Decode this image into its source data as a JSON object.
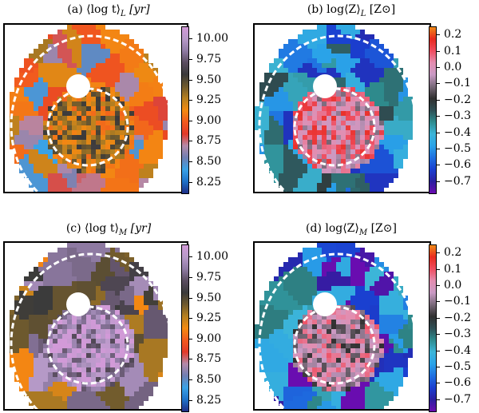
{
  "colors": {
    "age_scale": [
      "#1d2e86",
      "#1f72c8",
      "#3aa2e6",
      "#6f7fb3",
      "#b58aa8",
      "#e23a2a",
      "#f25a1e",
      "#f38a12",
      "#b78020",
      "#6f5a2e",
      "#3a3a3a",
      "#5a4d60",
      "#8f7ba4",
      "#b79ac8",
      "#d29ad8"
    ],
    "met_scale": [
      "#6a0db0",
      "#2b1fa0",
      "#1a3fd0",
      "#1f6fe0",
      "#2aa3e8",
      "#3cb5d8",
      "#2e8c8e",
      "#2f4f55",
      "#303030",
      "#7a6a7a",
      "#c99ac4",
      "#e38db0",
      "#ef4d5f",
      "#e82a1e",
      "#f08a18"
    ],
    "ring": "#ffffff",
    "hole": "#ffffff"
  },
  "chart_data": [
    {
      "type": "heatmap",
      "id": "a",
      "title": "(a) ⟨log t⟩L [yr]",
      "title_main": "(a) ⟨log t⟩",
      "title_sub": "L",
      "title_unit": "[yr]",
      "colorbar": {
        "scale": "age",
        "range": [
          8.1,
          10.15
        ],
        "ticks": [
          10.0,
          9.75,
          9.5,
          9.25,
          9.0,
          8.75,
          8.5,
          8.25
        ]
      },
      "core_value": 9.3,
      "outer_value": 8.85,
      "field": "age_light"
    },
    {
      "type": "heatmap",
      "id": "b",
      "title": "(b) log⟨Z⟩L [Z⊙]",
      "title_main": "(b) log⟨Z⟩",
      "title_sub": "L",
      "title_unit": "[Z⊙]",
      "colorbar": {
        "scale": "met",
        "range": [
          -0.78,
          0.25
        ],
        "ticks": [
          "0.2",
          "0.1",
          "0.0",
          "−0.1",
          "−0.2",
          "−0.3",
          "−0.4",
          "−0.5",
          "−0.6",
          "−0.7"
        ]
      },
      "core_value": 0.02,
      "outer_value": -0.45,
      "field": "met_light"
    },
    {
      "type": "heatmap",
      "id": "c",
      "title": "(c) ⟨log t⟩M [yr]",
      "title_main": "(c) ⟨log t⟩",
      "title_sub": "M",
      "title_unit": "[yr]",
      "colorbar": {
        "scale": "age",
        "range": [
          8.1,
          10.15
        ],
        "ticks": [
          10.0,
          9.75,
          9.5,
          9.25,
          9.0,
          8.75,
          8.5,
          8.25
        ]
      },
      "core_value": 9.95,
      "outer_value": 9.55,
      "field": "age_mass"
    },
    {
      "type": "heatmap",
      "id": "d",
      "title": "(d) log⟨Z⟩M [Z⊙]",
      "title_main": "(d) log⟨Z⟩",
      "title_sub": "M",
      "title_unit": "[Z⊙]",
      "colorbar": {
        "scale": "met",
        "range": [
          -0.78,
          0.25
        ],
        "ticks": [
          "0.2",
          "0.1",
          "0.0",
          "−0.1",
          "−0.2",
          "−0.3",
          "−0.4",
          "−0.5",
          "−0.6",
          "−0.7"
        ]
      },
      "core_value": -0.05,
      "outer_value": -0.55,
      "field": "met_mass"
    }
  ]
}
